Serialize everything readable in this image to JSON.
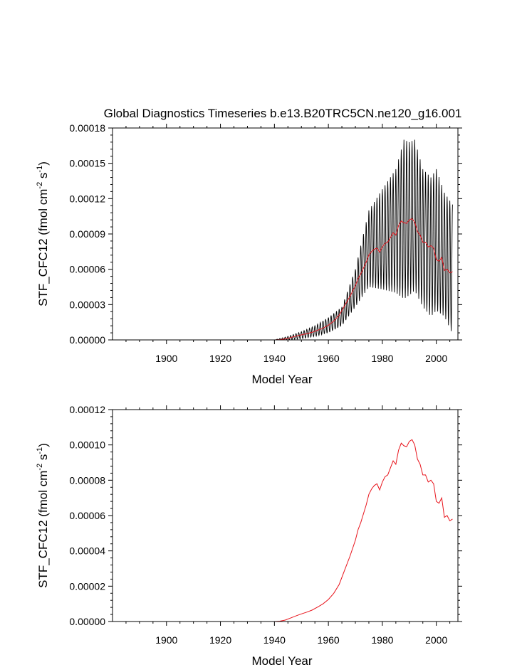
{
  "chart_data": [
    {
      "type": "line",
      "title": "Global Diagnostics Timeseries b.e13.B20TRC5CN.ne120_g16.001",
      "xlabel": "Model Year",
      "ylabel": "STF_CFC12 (fmol cm",
      "ylabel_sup1": "-2",
      "ylabel_mid": " s",
      "ylabel_sup2": "-1",
      "ylabel_end": ")",
      "xlim": [
        1880,
        2008
      ],
      "ylim": [
        0,
        0.00018
      ],
      "xticks": [
        1900,
        1920,
        1940,
        1960,
        1980,
        2000
      ],
      "yticks": [
        0,
        3e-05,
        6e-05,
        9e-05,
        0.00012,
        0.00015,
        0.00018
      ],
      "yticklabels": [
        "0.00000",
        "0.00003",
        "0.00006",
        "0.00009",
        "0.00012",
        "0.00015",
        "0.00018"
      ],
      "series": [
        {
          "color": "#000000",
          "style": "monthly values with strong seasonal cycle",
          "seasonal_envelope": {
            "years": [
              1940,
              1945,
              1950,
              1955,
              1960,
              1965,
              1970,
              1975,
              1980,
              1985,
              1988,
              1990,
              1992,
              1995,
              1998,
              2000,
              2003,
              2006
            ],
            "max": [
              0,
              3e-06,
              7e-06,
              1.2e-05,
              1.9e-05,
              2.8e-05,
              6e-05,
              0.00011,
              0.000128,
              0.000145,
              0.00017,
              0.000168,
              0.00017,
              0.000145,
              0.000138,
              0.000145,
              0.000125,
              0.000115
            ],
            "min": [
              0,
              0,
              1e-06,
              3e-06,
              6e-06,
              1.2e-05,
              2.8e-05,
              4.5e-05,
              4.3e-05,
              4e-05,
              3.5e-05,
              3.8e-05,
              4.2e-05,
              2.8e-05,
              2e-05,
              2.5e-05,
              2e-05,
              5e-06
            ]
          }
        },
        {
          "color": "#e8141c",
          "style": "annual mean",
          "ref": "annual_mean"
        }
      ]
    },
    {
      "type": "line",
      "title": "",
      "xlabel": "Model Year",
      "ylabel": "STF_CFC12 (fmol cm",
      "ylabel_sup1": "-2",
      "ylabel_mid": " s",
      "ylabel_sup2": "-1",
      "ylabel_end": ")",
      "xlim": [
        1880,
        2008
      ],
      "ylim": [
        0,
        0.00012
      ],
      "xticks": [
        1900,
        1920,
        1940,
        1960,
        1980,
        2000
      ],
      "yticks": [
        0,
        2e-05,
        4e-05,
        6e-05,
        8e-05,
        0.0001,
        0.00012
      ],
      "yticklabels": [
        "0.00000",
        "0.00002",
        "0.00004",
        "0.00006",
        "0.00008",
        "0.00010",
        "0.00012"
      ],
      "series": [
        {
          "color": "#e8141c",
          "style": "annual mean",
          "ref": "annual_mean"
        }
      ]
    }
  ],
  "annual_mean": {
    "x": [
      1940,
      1942,
      1944,
      1946,
      1948,
      1950,
      1952,
      1954,
      1956,
      1958,
      1960,
      1962,
      1964,
      1966,
      1968,
      1970,
      1971,
      1972,
      1974,
      1975,
      1976,
      1977,
      1978,
      1979,
      1980,
      1981,
      1982,
      1983,
      1984,
      1985,
      1986,
      1987,
      1988,
      1989,
      1990,
      1991,
      1992,
      1993,
      1994,
      1995,
      1996,
      1997,
      1998,
      1999,
      2000,
      2001,
      2002,
      2003,
      2004,
      2005,
      2006
    ],
    "y": [
      0,
      2e-07,
      8e-07,
      2e-06,
      3.2e-06,
      4.3e-06,
      5.3e-06,
      6.5e-06,
      8.2e-06,
      1e-05,
      1.25e-05,
      1.6e-05,
      2.1e-05,
      2.9e-05,
      3.7e-05,
      4.6e-05,
      5.2e-05,
      5.6e-05,
      6.6e-05,
      7.2e-05,
      7.5e-05,
      7.7e-05,
      7.8e-05,
      7.45e-05,
      7.9e-05,
      8.2e-05,
      8.3e-05,
      8.7e-05,
      9.1e-05,
      8.9e-05,
      9.7e-05,
      0.000101,
      9.95e-05,
      9.9e-05,
      0.000102,
      0.000103,
      0.0001,
      9.2e-05,
      8.9e-05,
      8.3e-05,
      8.3e-05,
      7.9e-05,
      8e-05,
      7.8e-05,
      6.8e-05,
      6.7e-05,
      7e-05,
      5.9e-05,
      6e-05,
      5.7e-05,
      5.8e-05
    ]
  }
}
